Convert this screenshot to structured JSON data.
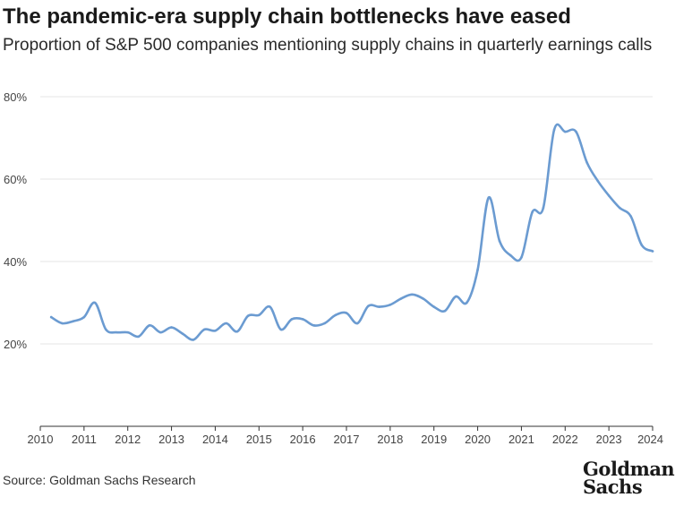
{
  "title": "The pandemic-era supply chain bottlenecks have eased",
  "subtitle": "Proportion of S&P 500 companies mentioning supply chains in quarterly earnings calls",
  "source": "Source: Goldman Sachs Research",
  "logo": {
    "line1": "Goldman",
    "line2": "Sachs"
  },
  "colors": {
    "line": "#6b9bd1",
    "grid": "#e6e6e6",
    "axis": "#333333"
  },
  "chart_data": {
    "type": "line",
    "title": "The pandemic-era supply chain bottlenecks have eased",
    "xlabel": "",
    "ylabel": "",
    "xlim": [
      2010,
      2024
    ],
    "ylim": [
      0,
      80
    ],
    "x_ticks": [
      2010,
      2011,
      2012,
      2013,
      2014,
      2015,
      2016,
      2017,
      2018,
      2019,
      2020,
      2021,
      2022,
      2023,
      2024
    ],
    "y_ticks": [
      20,
      40,
      60,
      80
    ],
    "y_tick_labels": [
      "20%",
      "40%",
      "60%",
      "80%"
    ],
    "grid": "horizontal",
    "series": [
      {
        "x": [
          2010.25,
          2010.5,
          2010.75,
          2011.0,
          2011.25,
          2011.5,
          2011.75,
          2012.0,
          2012.25,
          2012.5,
          2012.75,
          2013.0,
          2013.25,
          2013.5,
          2013.75,
          2014.0,
          2014.25,
          2014.5,
          2014.75,
          2015.0,
          2015.25,
          2015.5,
          2015.75,
          2016.0,
          2016.25,
          2016.5,
          2016.75,
          2017.0,
          2017.25,
          2017.5,
          2017.75,
          2018.0,
          2018.25,
          2018.5,
          2018.75,
          2019.0,
          2019.25,
          2019.5,
          2019.75,
          2020.0,
          2020.25,
          2020.5,
          2020.75,
          2021.0,
          2021.25,
          2021.5,
          2021.75,
          2022.0,
          2022.25,
          2022.5,
          2022.75,
          2023.0,
          2023.25,
          2023.5,
          2023.75,
          2024.0
        ],
        "values": [
          26.5,
          25.0,
          25.5,
          26.5,
          30.0,
          23.5,
          22.8,
          22.8,
          21.8,
          24.5,
          22.8,
          24.0,
          22.5,
          21.0,
          23.5,
          23.2,
          25.0,
          23.0,
          26.8,
          27.0,
          29.0,
          23.5,
          26.0,
          26.0,
          24.5,
          25.0,
          27.0,
          27.5,
          25.0,
          29.2,
          29.0,
          29.5,
          31.0,
          32.0,
          31.0,
          29.0,
          28.0,
          31.5,
          30.0,
          38.0,
          55.5,
          45.0,
          41.5,
          41.0,
          52.0,
          53.0,
          72.0,
          71.5,
          71.5,
          64.0,
          59.5,
          56.0,
          53.0,
          51.0,
          44.0,
          42.5
        ]
      }
    ]
  }
}
